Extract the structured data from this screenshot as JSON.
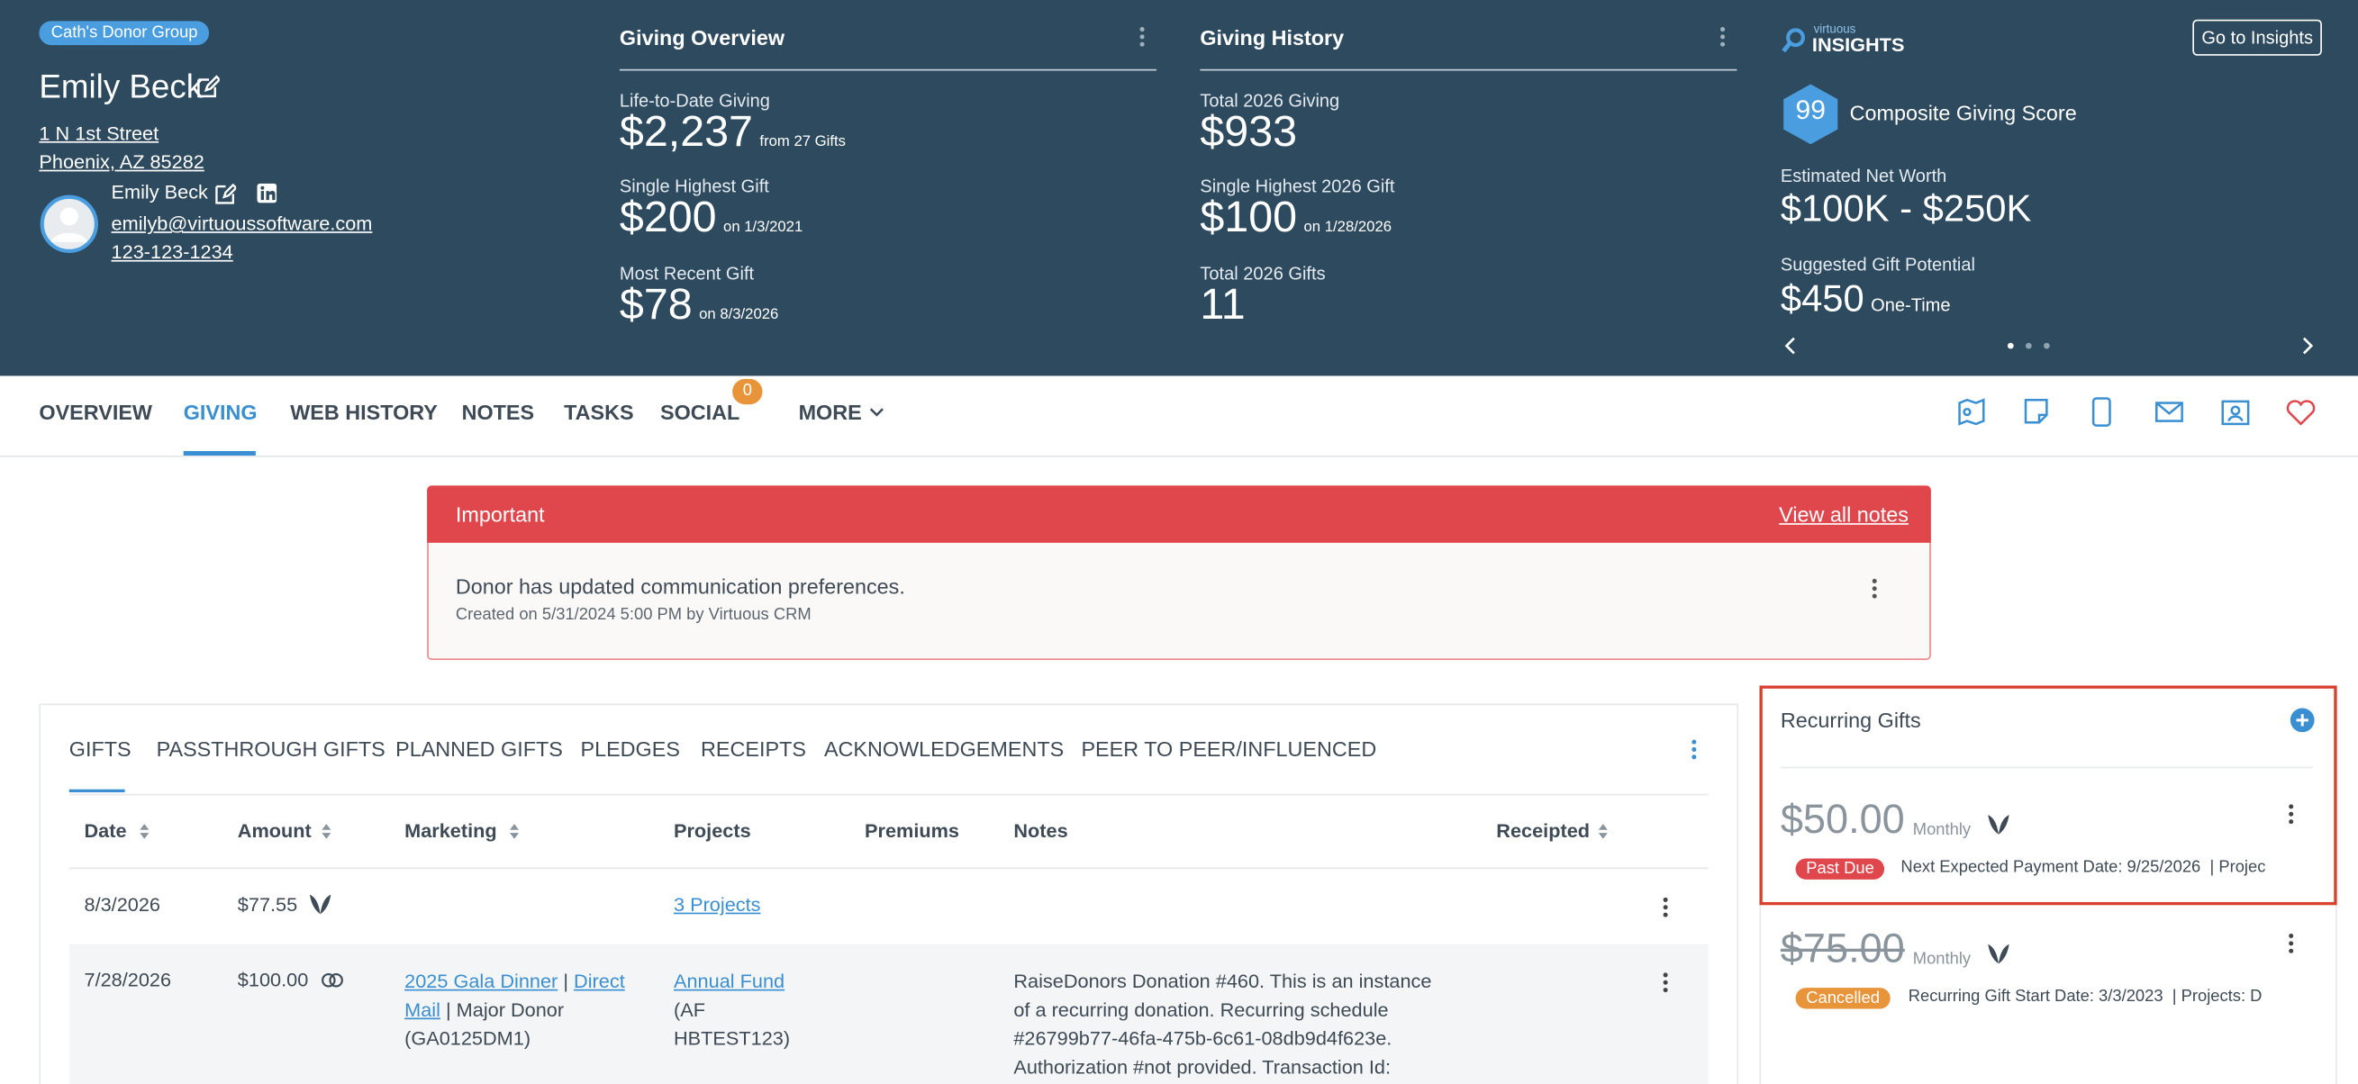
{
  "header": {
    "group_badge": "Cath's Donor Group",
    "name": "Emily Beck",
    "address": [
      "1 N 1st Street",
      "Phoenix, AZ 85282"
    ],
    "contact": {
      "name": "Emily Beck",
      "email": "emilyb@virtuoussoftware.com",
      "phone": "123-123-1234"
    }
  },
  "giving_overview": {
    "title": "Giving Overview",
    "items": [
      {
        "label": "Life-to-Date Giving",
        "value": "$2,237",
        "note": "from 27 Gifts"
      },
      {
        "label": "Single Highest Gift",
        "value": "$200",
        "note": "on 1/3/2021"
      },
      {
        "label": "Most Recent Gift",
        "value": "$78",
        "note": "on 8/3/2026"
      }
    ]
  },
  "giving_history": {
    "title": "Giving History",
    "items": [
      {
        "label": "Total 2026 Giving",
        "value": "$933"
      },
      {
        "label": "Single Highest 2026 Gift",
        "value": "$100",
        "note": "on 1/28/2026"
      },
      {
        "label": "Total 2026 Gifts",
        "value": "11"
      }
    ]
  },
  "insights": {
    "brand_small": "virtuous",
    "brand": "INSIGHTS",
    "button": "Go to Insights",
    "score": "99",
    "score_label": "Composite Giving Score",
    "net_worth_label": "Estimated Net Worth",
    "net_worth": "$100K - $250K",
    "potential_label": "Suggested Gift Potential",
    "potential": "$450",
    "potential_note": "One-Time"
  },
  "nav": {
    "tabs": [
      "OVERVIEW",
      "GIVING",
      "WEB HISTORY",
      "NOTES",
      "TASKS",
      "SOCIAL",
      "MORE"
    ],
    "social_badge": "0"
  },
  "alert": {
    "title": "Important",
    "link": "View all notes",
    "message": "Donor has updated communication preferences.",
    "meta": "Created on 5/31/2024 5:00 PM by Virtuous CRM"
  },
  "gifts": {
    "tabs": [
      "GIFTS",
      "PASSTHROUGH GIFTS",
      "PLANNED GIFTS",
      "PLEDGES",
      "RECEIPTS",
      "ACKNOWLEDGEMENTS",
      "PEER TO PEER/INFLUENCED"
    ],
    "columns": [
      "Date",
      "Amount",
      "Marketing",
      "Projects",
      "Premiums",
      "Notes",
      "Receipted"
    ],
    "rows": [
      {
        "date": "8/3/2026",
        "amount": "$77.55",
        "projects": "3 Projects"
      },
      {
        "date": "7/28/2026",
        "amount": "$100.00",
        "marketing": [
          "2025 Gala Dinner",
          "|",
          "Direct Mail",
          "| Major Donor (GA0125DM1)"
        ],
        "project_link": "Annual Fund",
        "project_code": "(AF HBTEST123)",
        "notes": "RaiseDonors Donation #460. This is an instance of a recurring donation. Recurring schedule #26799b77-46fa-475b-6c61-08db9d4f623e. Authorization #not provided. Transaction Id:"
      }
    ]
  },
  "recurring": {
    "title": "Recurring Gifts",
    "items": [
      {
        "amount": "$50.00",
        "frequency": "Monthly",
        "status": "Past Due",
        "details": "Next Expected Payment Date: 9/25/2026  | Projec"
      },
      {
        "amount": "$75.00",
        "frequency": "Monthly",
        "status": "Cancelled",
        "details": "Recurring Gift Start Date: 3/3/2023  | Projects: D"
      }
    ]
  }
}
